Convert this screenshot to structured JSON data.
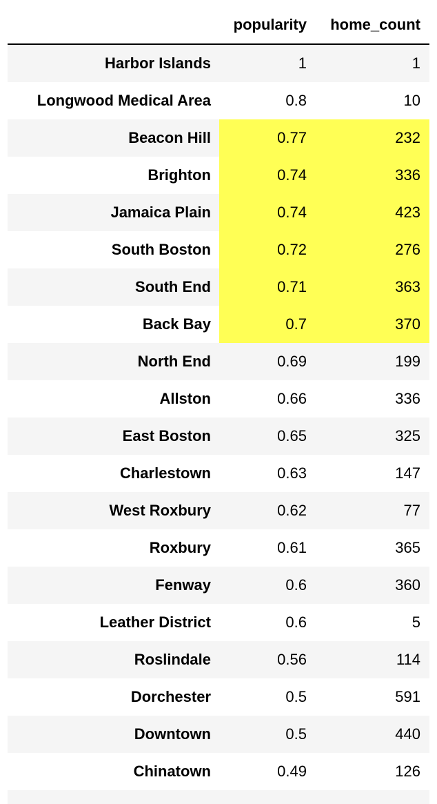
{
  "table": {
    "columns": [
      "popularity",
      "home_count"
    ],
    "rows": [
      {
        "name": "Harbor Islands",
        "popularity": "1",
        "home_count": "1",
        "highlight": false
      },
      {
        "name": "Longwood Medical Area",
        "popularity": "0.8",
        "home_count": "10",
        "highlight": false
      },
      {
        "name": "Beacon Hill",
        "popularity": "0.77",
        "home_count": "232",
        "highlight": true
      },
      {
        "name": "Brighton",
        "popularity": "0.74",
        "home_count": "336",
        "highlight": true
      },
      {
        "name": "Jamaica Plain",
        "popularity": "0.74",
        "home_count": "423",
        "highlight": true
      },
      {
        "name": "South Boston",
        "popularity": "0.72",
        "home_count": "276",
        "highlight": true
      },
      {
        "name": "South End",
        "popularity": "0.71",
        "home_count": "363",
        "highlight": true
      },
      {
        "name": "Back Bay",
        "popularity": "0.7",
        "home_count": "370",
        "highlight": true
      },
      {
        "name": "North End",
        "popularity": "0.69",
        "home_count": "199",
        "highlight": false
      },
      {
        "name": "Allston",
        "popularity": "0.66",
        "home_count": "336",
        "highlight": false
      },
      {
        "name": "East Boston",
        "popularity": "0.65",
        "home_count": "325",
        "highlight": false
      },
      {
        "name": "Charlestown",
        "popularity": "0.63",
        "home_count": "147",
        "highlight": false
      },
      {
        "name": "West Roxbury",
        "popularity": "0.62",
        "home_count": "77",
        "highlight": false
      },
      {
        "name": "Roxbury",
        "popularity": "0.61",
        "home_count": "365",
        "highlight": false
      },
      {
        "name": "Fenway",
        "popularity": "0.6",
        "home_count": "360",
        "highlight": false
      },
      {
        "name": "Leather District",
        "popularity": "0.6",
        "home_count": "5",
        "highlight": false
      },
      {
        "name": "Roslindale",
        "popularity": "0.56",
        "home_count": "114",
        "highlight": false
      },
      {
        "name": "Dorchester",
        "popularity": "0.5",
        "home_count": "591",
        "highlight": false
      },
      {
        "name": "Downtown",
        "popularity": "0.5",
        "home_count": "440",
        "highlight": false
      },
      {
        "name": "Chinatown",
        "popularity": "0.49",
        "home_count": "126",
        "highlight": false
      }
    ]
  },
  "colors": {
    "highlight": "#ffff55",
    "stripe": "#f5f5f5"
  }
}
